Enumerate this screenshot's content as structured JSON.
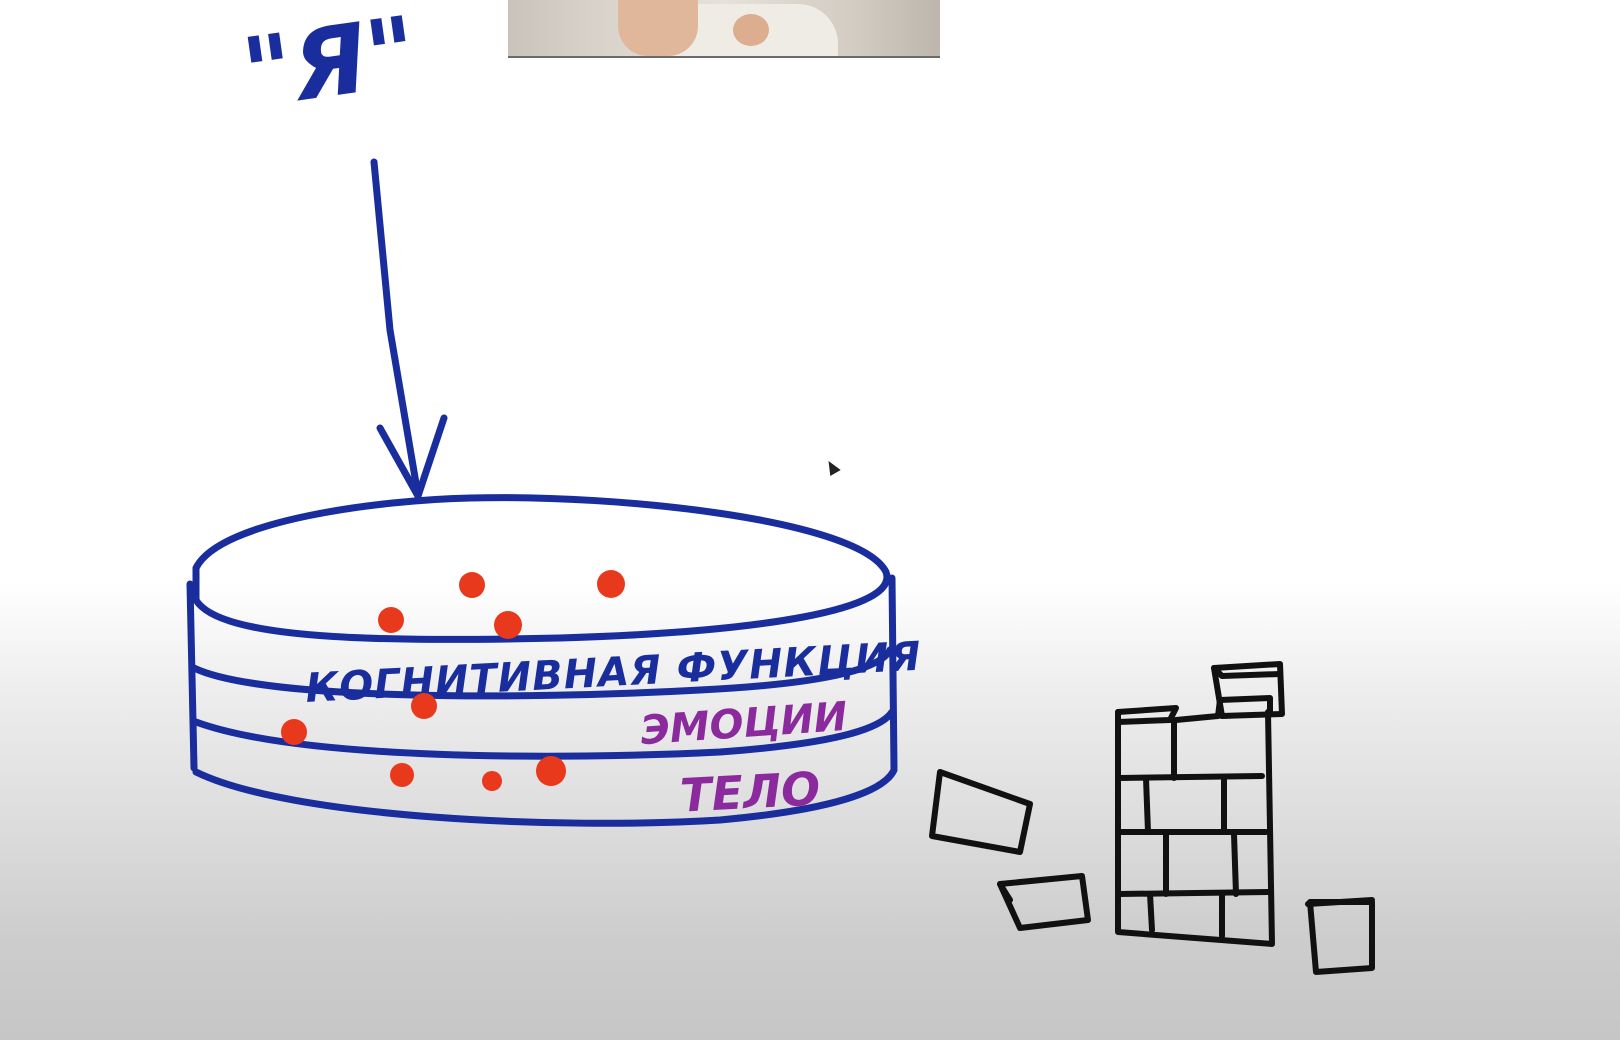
{
  "labels": {
    "ya": "\"Я\"",
    "cognitive": "КОГНИТИВНАЯ ФУНКЦИЯ",
    "emotions": "ЭМОЦИИ",
    "body": "ТЕЛО"
  },
  "colors": {
    "ink_blue": "#1a2d9c",
    "ink_purple": "#8a2a9c",
    "dot_red": "#e8391c",
    "ink_black": "#111111"
  },
  "icons": {
    "webcam": "presenter-video-thumbnail",
    "cursor": "mouse-pointer-icon"
  }
}
